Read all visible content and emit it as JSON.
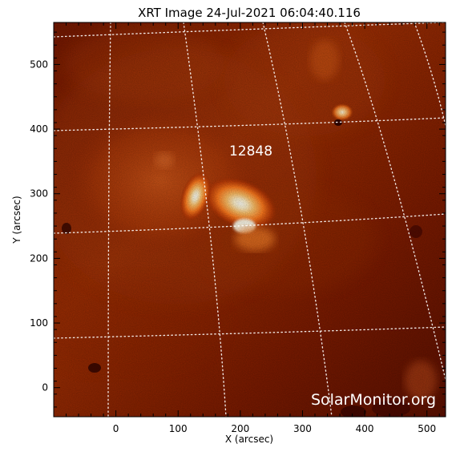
{
  "title": "XRT Image 24-Jul-2021 06:04:40.116",
  "region_label": "12848",
  "watermark": "SolarMonitor.org",
  "colors": {
    "background": "#ffffff",
    "axis": "#000000",
    "grid": "#ffffff",
    "solar_dark": "#5a0d00",
    "solar_mid": "#b93a00",
    "solar_bright": "#ff9a2a",
    "solar_hot": "#fff6d8"
  },
  "chart_data": {
    "type": "heatmap",
    "title": "XRT Image 24-Jul-2021 06:04:40.116",
    "xlabel": "X (arcsec)",
    "ylabel": "Y (arcsec)",
    "xlim": [
      -100,
      530
    ],
    "ylim": [
      -45,
      565
    ],
    "x_ticks": [
      0,
      100,
      200,
      300,
      400,
      500
    ],
    "y_ticks": [
      0,
      100,
      200,
      300,
      400,
      500
    ],
    "grid": true,
    "legend": "none"
  }
}
